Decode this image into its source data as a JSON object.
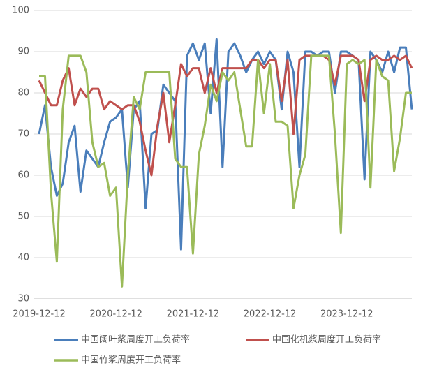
{
  "chart_data": {
    "type": "line",
    "categories": [
      "2019-12-12",
      null,
      null,
      null,
      null,
      null,
      null,
      null,
      null,
      null,
      null,
      null,
      null,
      "2020-12-12",
      null,
      null,
      null,
      null,
      null,
      null,
      null,
      null,
      null,
      null,
      null,
      null,
      "2021-12-12",
      null,
      null,
      null,
      null,
      null,
      null,
      null,
      null,
      null,
      null,
      null,
      null,
      "2022-12-12",
      null,
      null,
      null,
      null,
      null,
      null,
      null,
      null,
      null,
      null,
      null,
      null,
      "2023-12-12",
      null,
      null,
      null,
      null,
      null,
      null,
      null,
      null,
      null,
      null,
      null
    ],
    "series": [
      {
        "name": "中国阔叶浆周度开工负荷率",
        "color": "#4a7ebb",
        "values": [
          70,
          77,
          62,
          55,
          58,
          68,
          72,
          56,
          66,
          64,
          62,
          68,
          73,
          74,
          76,
          57,
          76,
          78,
          52,
          70,
          71,
          82,
          80,
          78,
          42,
          89,
          92,
          88,
          92,
          75,
          93,
          62,
          90,
          92,
          89,
          85,
          88,
          90,
          87,
          90,
          88,
          76,
          90,
          85,
          62,
          90,
          90,
          89,
          90,
          90,
          80,
          90,
          90,
          89,
          88,
          59,
          90,
          88,
          85,
          90,
          85,
          91,
          91,
          76
        ]
      },
      {
        "name": "中国化机浆周度开工负荷率",
        "color": "#c0504d",
        "values": [
          83,
          80,
          77,
          77,
          83,
          86,
          77,
          81,
          79,
          81,
          81,
          76,
          78,
          77,
          76,
          77,
          77,
          73,
          66,
          60,
          72,
          80,
          68,
          77,
          87,
          84,
          86,
          86,
          80,
          86,
          80,
          86,
          86,
          86,
          86,
          86,
          88,
          88,
          86,
          88,
          88,
          78,
          88,
          70,
          88,
          89,
          89,
          89,
          89,
          88,
          82,
          89,
          89,
          89,
          88,
          78,
          88,
          89,
          88,
          88,
          89,
          88,
          89,
          86
        ]
      },
      {
        "name": "中国竹浆周度开工负荷率",
        "color": "#9bbb59",
        "values": [
          84,
          84,
          56,
          39,
          76,
          89,
          89,
          89,
          85,
          68,
          62,
          63,
          55,
          57,
          33,
          60,
          79,
          76,
          85,
          85,
          85,
          85,
          85,
          64,
          62,
          62,
          41,
          65,
          72,
          82,
          78,
          85,
          83,
          85,
          76,
          67,
          67,
          88,
          75,
          87,
          73,
          73,
          72,
          52,
          60,
          65,
          89,
          89,
          89,
          89,
          70,
          46,
          87,
          88,
          87,
          88,
          57,
          88,
          84,
          83,
          61,
          69,
          80,
          80
        ]
      }
    ],
    "ylim": [
      30,
      100
    ],
    "yticks": [
      30,
      40,
      50,
      60,
      70,
      80,
      90,
      100
    ],
    "grid": true
  }
}
